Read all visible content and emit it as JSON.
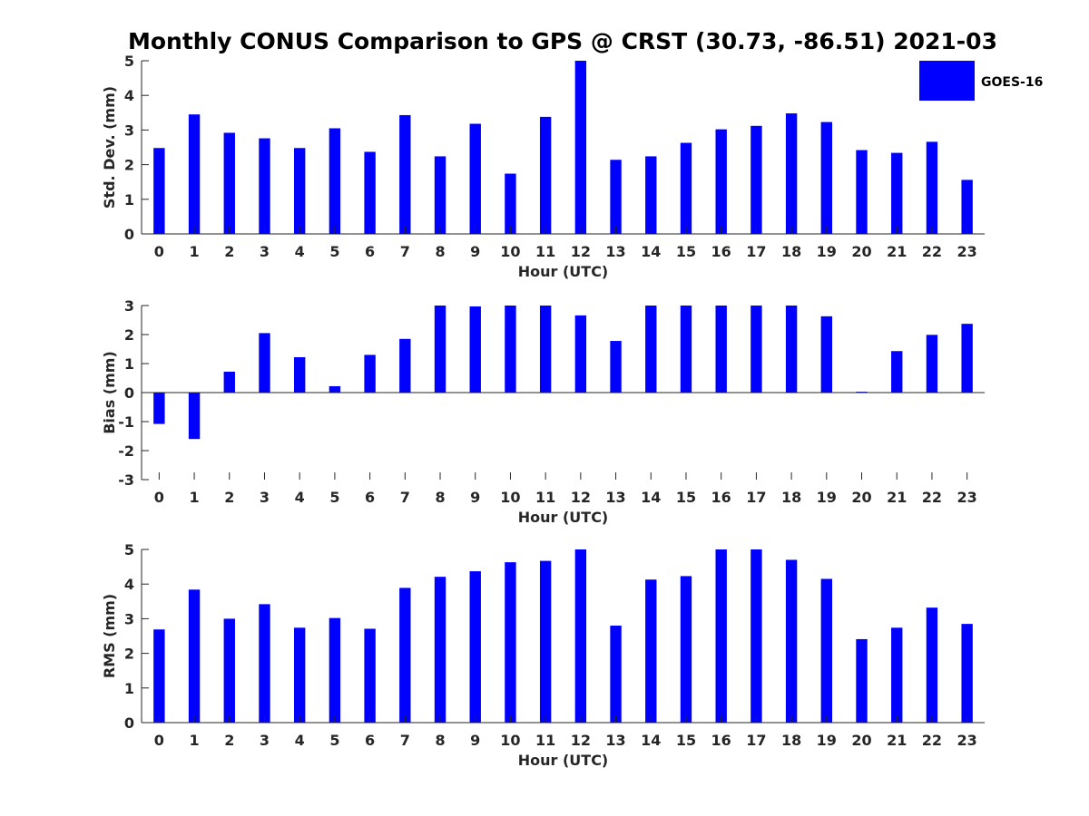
{
  "title": "Monthly CONUS Comparison to GPS @ CRST (30.73, -86.51) 2021-03",
  "legend": {
    "label": "GOES-16",
    "color": "#0000ff",
    "placement": "top-right"
  },
  "bar_color": "#0000ff",
  "chart_data": [
    {
      "type": "bar",
      "ylabel": "Std. Dev. (mm)",
      "xlabel": "Hour (UTC)",
      "ylim": [
        0,
        5
      ],
      "yticks": [
        0,
        1,
        2,
        3,
        4,
        5
      ],
      "categories": [
        "0",
        "1",
        "2",
        "3",
        "4",
        "5",
        "6",
        "7",
        "8",
        "9",
        "10",
        "11",
        "12",
        "13",
        "14",
        "15",
        "16",
        "17",
        "18",
        "19",
        "20",
        "21",
        "22",
        "23"
      ],
      "series": [
        {
          "name": "GOES-16",
          "values": [
            2.48,
            3.45,
            2.92,
            2.76,
            2.48,
            3.05,
            2.37,
            3.43,
            2.24,
            3.18,
            1.74,
            3.38,
            5.0,
            2.14,
            2.24,
            2.63,
            3.02,
            3.12,
            3.48,
            3.23,
            2.42,
            2.34,
            2.66,
            1.56
          ]
        }
      ],
      "grid": false
    },
    {
      "type": "bar",
      "ylabel": "Bias (mm)",
      "xlabel": "Hour (UTC)",
      "ylim": [
        -3,
        3
      ],
      "yticks": [
        -3,
        -2,
        -1,
        0,
        1,
        2,
        3
      ],
      "categories": [
        "0",
        "1",
        "2",
        "3",
        "4",
        "5",
        "6",
        "7",
        "8",
        "9",
        "10",
        "11",
        "12",
        "13",
        "14",
        "15",
        "16",
        "17",
        "18",
        "19",
        "20",
        "21",
        "22",
        "23"
      ],
      "series": [
        {
          "name": "GOES-16",
          "values": [
            -1.08,
            -1.6,
            0.72,
            2.05,
            1.22,
            0.22,
            1.3,
            1.85,
            3.0,
            2.97,
            3.0,
            3.0,
            2.66,
            1.78,
            3.0,
            3.0,
            3.0,
            3.0,
            3.0,
            2.63,
            0.03,
            1.43,
            1.99,
            2.37
          ]
        }
      ],
      "grid": false
    },
    {
      "type": "bar",
      "ylabel": "RMS (mm)",
      "xlabel": "Hour (UTC)",
      "ylim": [
        0,
        5
      ],
      "yticks": [
        0,
        1,
        2,
        3,
        4,
        5
      ],
      "categories": [
        "0",
        "1",
        "2",
        "3",
        "4",
        "5",
        "6",
        "7",
        "8",
        "9",
        "10",
        "11",
        "12",
        "13",
        "14",
        "15",
        "16",
        "17",
        "18",
        "19",
        "20",
        "21",
        "22",
        "23"
      ],
      "series": [
        {
          "name": "GOES-16",
          "values": [
            2.69,
            3.84,
            3.0,
            3.42,
            2.74,
            3.02,
            2.71,
            3.89,
            4.21,
            4.37,
            4.63,
            4.67,
            5.0,
            2.8,
            4.13,
            4.23,
            5.0,
            5.0,
            4.7,
            4.15,
            2.41,
            2.74,
            3.32,
            2.85
          ]
        }
      ],
      "grid": false
    }
  ]
}
